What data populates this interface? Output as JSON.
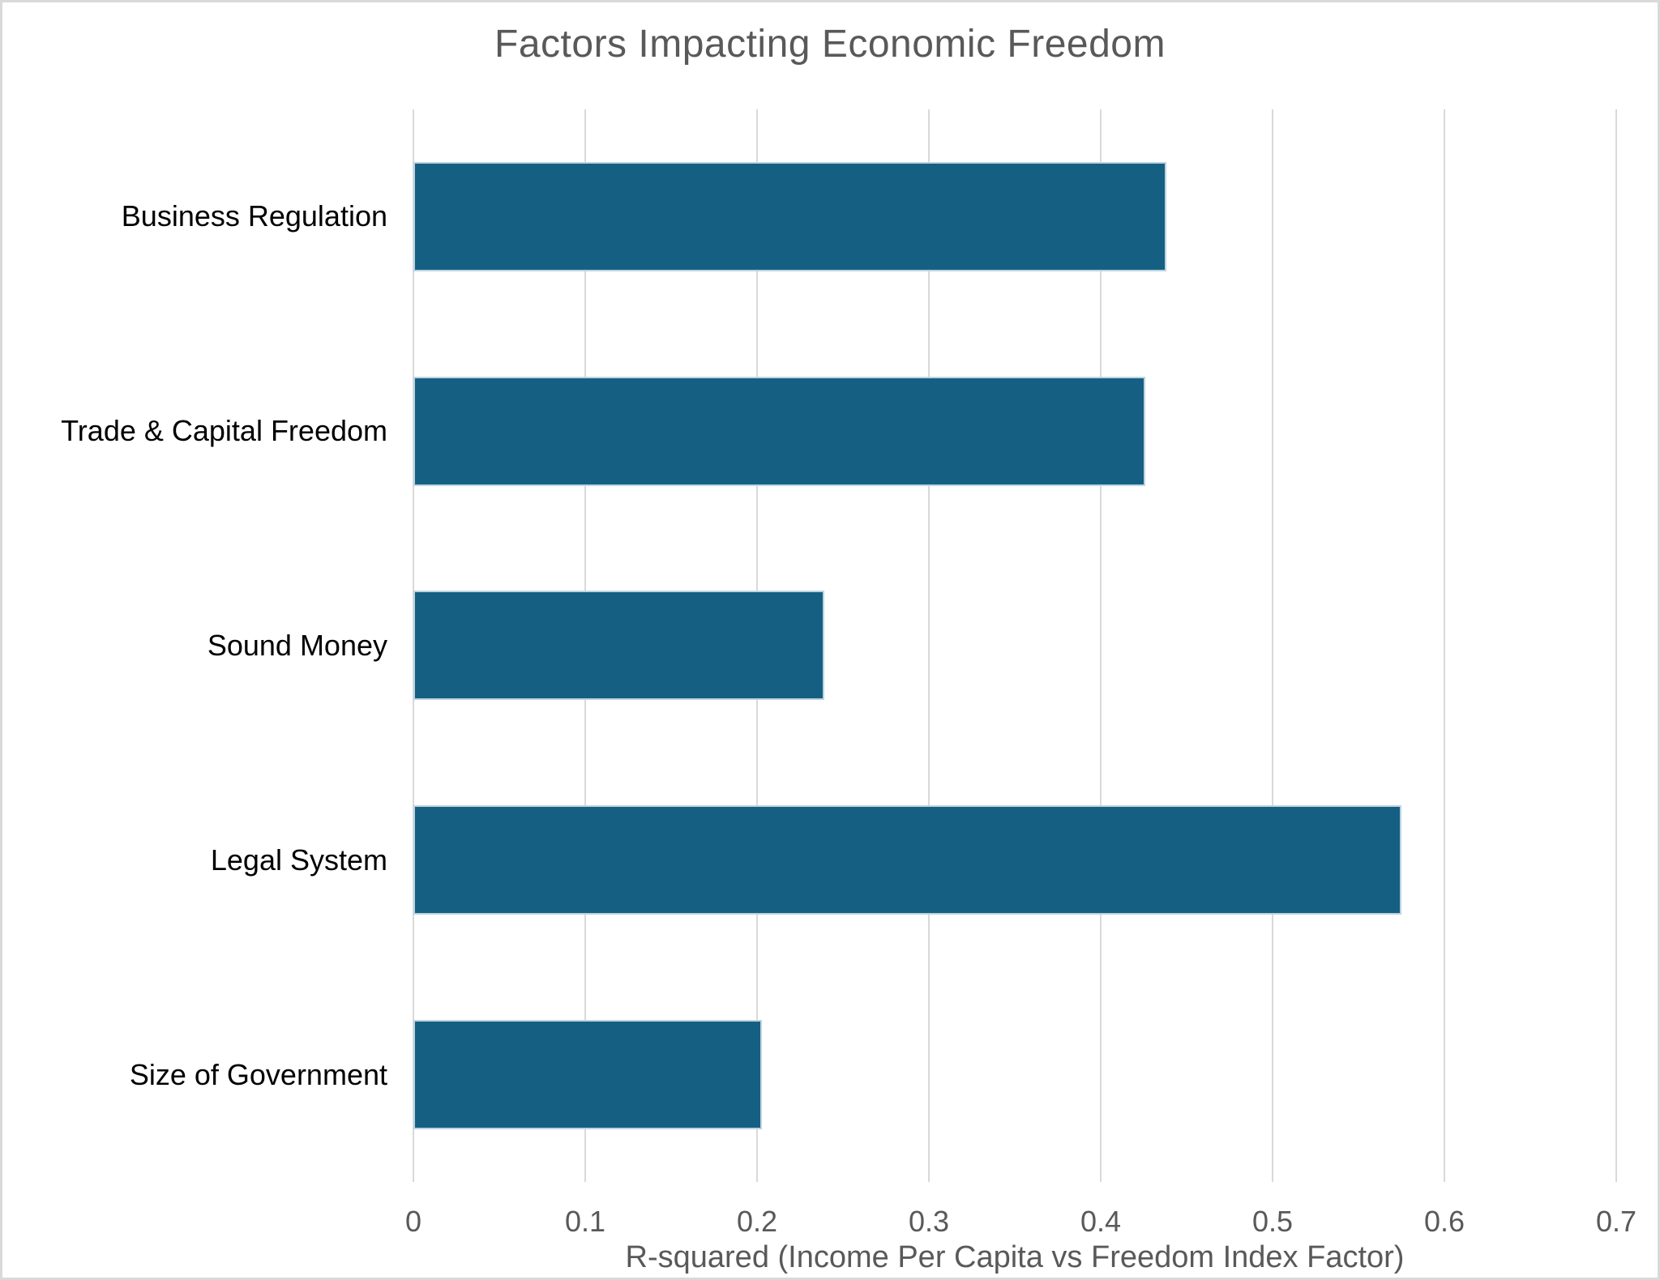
{
  "window": {
    "background": "#ffffff",
    "border_color": "#d9d9d9"
  },
  "chart_data": {
    "type": "bar",
    "orientation": "horizontal",
    "title": "Factors Impacting Economic Freedom",
    "categories": [
      "Business Regulation",
      "Trade & Capital Freedom",
      "Sound Money",
      "Legal System",
      "Size of Government"
    ],
    "values": [
      0.438,
      0.426,
      0.239,
      0.575,
      0.203
    ],
    "xlabel": "R-squared (Income Per Capita vs Freedom Index Factor)",
    "ylabel": "",
    "xlim": [
      0,
      0.7
    ],
    "xticks": [
      0,
      0.1,
      0.2,
      0.3,
      0.4,
      0.5,
      0.6,
      0.7
    ],
    "xtick_labels": [
      "0",
      "0.1",
      "0.2",
      "0.3",
      "0.4",
      "0.5",
      "0.6",
      "0.7"
    ],
    "grid": "vertical-gridlines-on",
    "legend": "none",
    "colors": {
      "bar_fill": "#156082",
      "bar_border": "#bdd3e0",
      "gridline": "#d9d9d9",
      "title_text": "#595959",
      "axis_text": "#595959",
      "category_text": "#000000"
    }
  }
}
